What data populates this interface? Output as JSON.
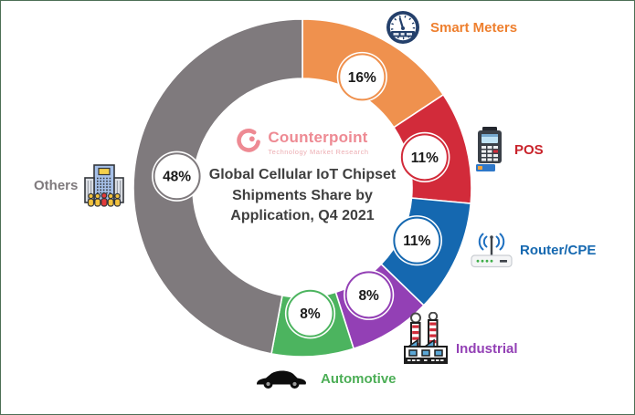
{
  "frame": {
    "border_color": "#4C6F55",
    "background": "#FFFFFF"
  },
  "logo": {
    "name": "Counterpoint",
    "tagline": "Technology Market Research",
    "brand_color": "#EE8A93"
  },
  "center": {
    "line1": "Global Cellular IoT Chipset",
    "line2": "Shipments Share by",
    "line3": "Application, Q4 2021"
  },
  "chart_data": {
    "type": "pie",
    "variant": "donut",
    "title": "Global Cellular IoT Chipset Shipments Share by Application, Q4 2021",
    "unit": "%",
    "direction": "clockwise",
    "start_angle_deg": 0,
    "bubble_text_color": "#1A1A1A",
    "segments": [
      {
        "label": "Smart Meters",
        "value": 16,
        "display": "16%",
        "color": "#EF914E",
        "label_color": "#EE7F2E",
        "icon": "gauge-icon"
      },
      {
        "label": "POS",
        "value": 11,
        "display": "11%",
        "color": "#D22B3A",
        "label_color": "#C9232B",
        "icon": "pos-terminal-icon"
      },
      {
        "label": "Router/CPE",
        "value": 11,
        "display": "11%",
        "color": "#1568B0",
        "label_color": "#1568B0",
        "icon": "router-icon"
      },
      {
        "label": "Industrial",
        "value": 8,
        "display": "8%",
        "color": "#9340B5",
        "label_color": "#9340B5",
        "icon": "factory-icon"
      },
      {
        "label": "Automotive",
        "value": 8,
        "display": "8%",
        "color": "#4CB45F",
        "label_color": "#4CAE56",
        "icon": "car-icon"
      },
      {
        "label": "Others",
        "value": 48,
        "display": "48%",
        "color": "#7F7A7D",
        "label_color": "#7F7A7D",
        "icon": "building-icon"
      }
    ]
  }
}
